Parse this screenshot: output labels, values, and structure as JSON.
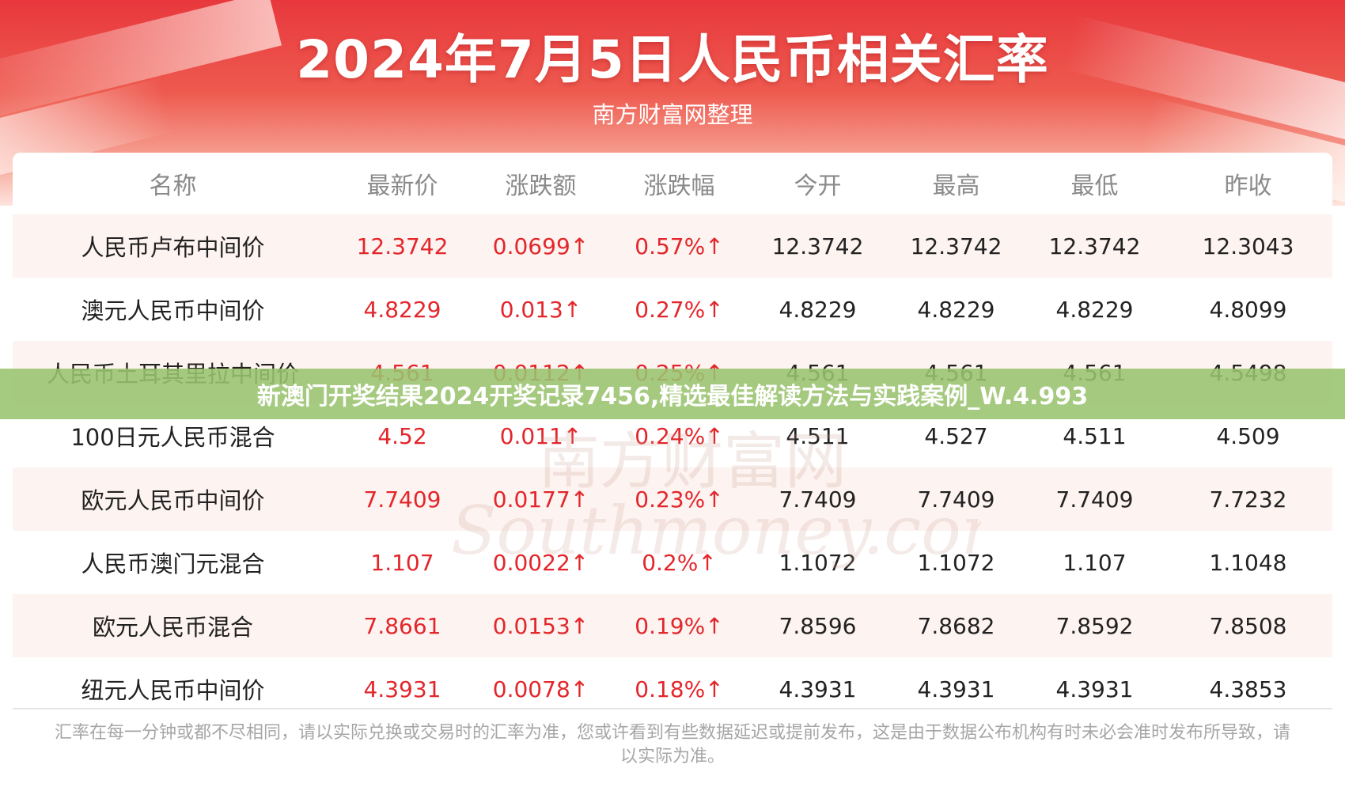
{
  "header": {
    "title": "2024年7月5日人民币相关汇率",
    "subtitle": "南方财富网整理"
  },
  "table": {
    "columns": [
      "名称",
      "最新价",
      "涨跌额",
      "涨跌幅",
      "今开",
      "最高",
      "最低",
      "昨收"
    ],
    "rows": [
      [
        "人民币卢布中间价",
        "12.3742",
        "0.0699↑",
        "0.57%↑",
        "12.3742",
        "12.3742",
        "12.3742",
        "12.3043"
      ],
      [
        "澳元人民币中间价",
        "4.8229",
        "0.013↑",
        "0.27%↑",
        "4.8229",
        "4.8229",
        "4.8229",
        "4.8099"
      ],
      [
        "人民币土耳其里拉中间价",
        "4.561",
        "0.0112↑",
        "0.25%↑",
        "4.561",
        "4.561",
        "4.561",
        "4.5498"
      ],
      [
        "100日元人民币混合",
        "4.52",
        "0.011↑",
        "0.24%↑",
        "4.511",
        "4.527",
        "4.511",
        "4.509"
      ],
      [
        "欧元人民币中间价",
        "7.7409",
        "0.0177↑",
        "0.23%↑",
        "7.7409",
        "7.7409",
        "7.7409",
        "7.7232"
      ],
      [
        "人民币澳门元混合",
        "1.107",
        "0.0022↑",
        "0.2%↑",
        "1.1072",
        "1.1072",
        "1.107",
        "1.1048"
      ],
      [
        "欧元人民币混合",
        "7.8661",
        "0.0153↑",
        "0.19%↑",
        "7.8596",
        "7.8682",
        "7.8592",
        "7.8508"
      ],
      [
        "纽元人民币中间价",
        "4.3931",
        "0.0078↑",
        "0.18%↑",
        "4.3931",
        "4.3931",
        "4.3931",
        "4.3853"
      ]
    ]
  },
  "watermark": {
    "cn": "南方财富网",
    "en": "Southmoney.com"
  },
  "banner": {
    "text": "新澳门开奖结果2024开奖记录7456,精选最佳解读方法与实践案例_W.4.993"
  },
  "footnote": "汇率在每一分钟或都不尽相同，请以实际兑换或交易时的汇率为准，您或许看到有些数据延迟或提前发布，这是由于数据公布机构有时未必会准时发布所导致，请以实际为准。",
  "colors": {
    "header_red": "#e8383d",
    "up_red": "#e3262b",
    "row_stripe": "#fdf3f0",
    "banner_green": "#98c46e"
  }
}
